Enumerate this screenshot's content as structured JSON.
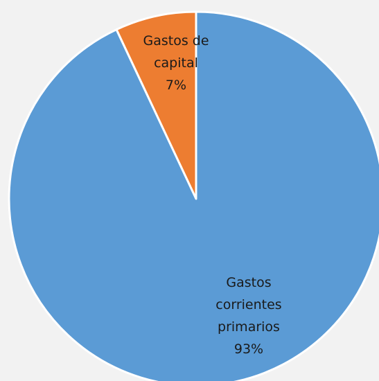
{
  "chart_data": {
    "type": "pie",
    "slices": [
      {
        "label_lines": [
          "Gastos de",
          "capital"
        ],
        "pct_label": "7%",
        "value": 7,
        "color": "#ed7d31"
      },
      {
        "label_lines": [
          "Gastos",
          "corrientes",
          "primarios"
        ],
        "pct_label": "93%",
        "value": 93,
        "color": "#5b9bd5"
      }
    ]
  }
}
